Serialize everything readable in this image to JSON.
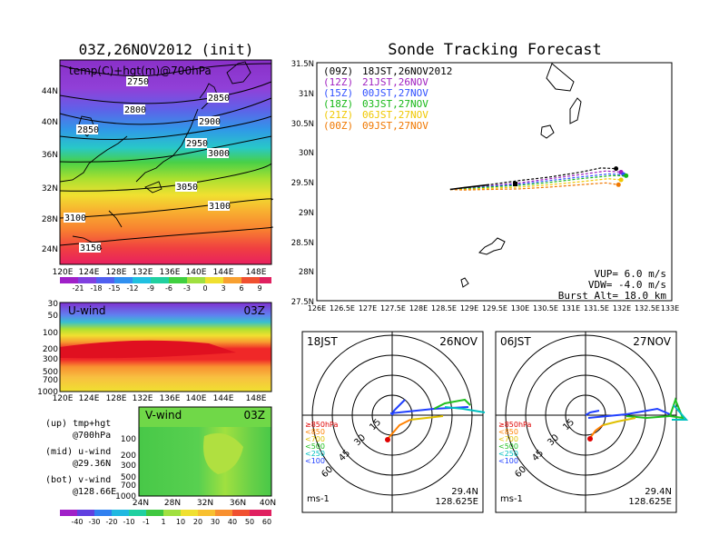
{
  "main_title": "03Z,26NOV2012 (init)",
  "right_title": "Sonde Tracking Forecast",
  "map700": {
    "label": "temp(C)+hgt(m)@700hPa",
    "xticks": [
      "120E",
      "124E",
      "128E",
      "132E",
      "136E",
      "140E",
      "144E",
      "148E"
    ],
    "yticks": [
      "24N",
      "28N",
      "32N",
      "36N",
      "40N",
      "44N"
    ],
    "contour_labels": [
      "2750",
      "2800",
      "2850",
      "2850",
      "2900",
      "2950",
      "3000",
      "3050",
      "3100",
      "3100",
      "3150"
    ],
    "colorbar": [
      "-21",
      "-18",
      "-15",
      "-12",
      "-9",
      "-6",
      "-3",
      "0",
      "3",
      "6",
      "9"
    ]
  },
  "uwind": {
    "label": "U-wind",
    "time": "03Z",
    "yticks": [
      "30",
      "50",
      "100",
      "200",
      "300",
      "500",
      "700",
      "1000"
    ],
    "xticks": [
      "120E",
      "124E",
      "128E",
      "132E",
      "136E",
      "140E",
      "144E",
      "148E"
    ]
  },
  "vwind": {
    "label": "V-wind",
    "time": "03Z",
    "yticks": [
      "100",
      "200",
      "300",
      "500",
      "700",
      "1000"
    ],
    "xticks": [
      "24N",
      "28N",
      "32N",
      "36N",
      "40N"
    ],
    "colorbar": [
      "-40",
      "-30",
      "-20",
      "-10",
      "-1",
      "1",
      "10",
      "20",
      "30",
      "40",
      "50",
      "60"
    ]
  },
  "notes": [
    {
      "a": "(up) tmp+hgt",
      "b": "@700hPa"
    },
    {
      "a": "(mid) u-wind",
      "b": "@29.36N"
    },
    {
      "a": "(bot) v-wind",
      "b": "@128.66E"
    }
  ],
  "track": {
    "legend": [
      {
        "utc": "(09Z)",
        "jst": "18JST,26NOV2012",
        "color": "#000000"
      },
      {
        "utc": "(12Z)",
        "jst": "21JST,26NOV",
        "color": "#a020c0"
      },
      {
        "utc": "(15Z)",
        "jst": "00JST,27NOV",
        "color": "#3050ff"
      },
      {
        "utc": "(18Z)",
        "jst": "03JST,27NOV",
        "color": "#18b818"
      },
      {
        "utc": "(21Z)",
        "jst": "06JST,27NOV",
        "color": "#f0c800"
      },
      {
        "utc": "(00Z)",
        "jst": "09JST,27NOV",
        "color": "#f07800"
      }
    ],
    "xticks": [
      "126E",
      "126.5E",
      "127E",
      "127.5E",
      "128E",
      "128.5E",
      "129E",
      "129.5E",
      "130E",
      "130.5E",
      "131E",
      "131.5E",
      "132E",
      "132.5E",
      "133E"
    ],
    "yticks": [
      "27.5N",
      "28N",
      "28.5N",
      "29N",
      "29.5N",
      "30N",
      "30.5N",
      "31N",
      "31.5N"
    ],
    "info": [
      "VUP=  6.0 m/s",
      "VDW= -4.0 m/s",
      "Burst Alt= 18.0 km"
    ]
  },
  "chart_data": [
    {
      "type": "line",
      "title": "Sonde Tracking Forecast",
      "xlim": [
        126,
        133
      ],
      "ylim": [
        27.5,
        31.5
      ],
      "series": [
        {
          "name": "(09Z) 18JST,26NOV2012",
          "x": [
            128.63,
            128.9,
            129.4,
            130,
            130.6,
            131.2,
            131.6,
            131.9
          ],
          "y": [
            29.37,
            29.4,
            29.45,
            29.52,
            29.58,
            29.66,
            29.73,
            29.72
          ]
        },
        {
          "name": "(12Z) 21JST,26NOV",
          "x": [
            128.63,
            128.9,
            129.4,
            130,
            130.6,
            131.2,
            131.7,
            132.0
          ],
          "y": [
            29.37,
            29.39,
            29.43,
            29.48,
            29.55,
            29.62,
            29.68,
            29.66
          ]
        },
        {
          "name": "(15Z) 00JST,27NOV",
          "x": [
            128.63,
            128.9,
            129.4,
            130,
            130.6,
            131.2,
            131.75,
            132.05
          ],
          "y": [
            29.37,
            29.38,
            29.42,
            29.46,
            29.52,
            29.58,
            29.63,
            29.62
          ]
        },
        {
          "name": "(18Z) 03JST,27NOV",
          "x": [
            128.63,
            128.9,
            129.4,
            130,
            130.6,
            131.2,
            131.8,
            132.1
          ],
          "y": [
            29.37,
            29.38,
            29.41,
            29.44,
            29.49,
            29.55,
            29.6,
            29.6
          ]
        },
        {
          "name": "(21Z) 06JST,27NOV",
          "x": [
            128.63,
            128.9,
            129.4,
            130,
            130.6,
            131.2,
            131.75,
            132.0
          ],
          "y": [
            29.37,
            29.37,
            29.39,
            29.41,
            29.45,
            29.5,
            29.55,
            29.53
          ]
        },
        {
          "name": "(00Z) 09JST,27NOV",
          "x": [
            128.63,
            128.9,
            129.4,
            130,
            130.6,
            131.2,
            131.7,
            131.95
          ],
          "y": [
            29.37,
            29.36,
            29.37,
            29.38,
            29.41,
            29.45,
            29.48,
            29.45
          ]
        }
      ]
    }
  ],
  "polar_left": {
    "time": "18JST",
    "date": "26NOV",
    "lat": "29.4N",
    "lon": "128.625E",
    "unit": "ms-1"
  },
  "polar_right": {
    "time": "06JST",
    "date": "27NOV",
    "lat": "29.4N",
    "lon": "128.625E",
    "unit": "ms-1"
  },
  "polar_rings": [
    "15",
    "30",
    "45",
    "60"
  ],
  "polar_levels": [
    {
      "label": "≥850hPa",
      "color": "#e00000"
    },
    {
      "label": "<850",
      "color": "#ff8000"
    },
    {
      "label": "<700",
      "color": "#e0c000"
    },
    {
      "label": "<500",
      "color": "#20c020"
    },
    {
      "label": "<250",
      "color": "#00c0c0"
    },
    {
      "label": "<100",
      "color": "#2040ff"
    }
  ]
}
